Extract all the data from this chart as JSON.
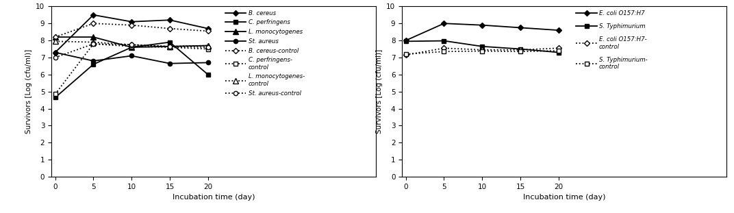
{
  "x": [
    0,
    5,
    10,
    15,
    20
  ],
  "left_series": {
    "B_cereus": [
      7.3,
      9.5,
      9.1,
      9.2,
      8.7
    ],
    "C_perfringens": [
      4.65,
      6.6,
      7.6,
      7.9,
      6.0
    ],
    "L_monocytogenes": [
      8.2,
      8.2,
      7.6,
      7.65,
      7.7
    ],
    "St_aureus": [
      7.3,
      6.8,
      7.1,
      6.65,
      6.7
    ],
    "B_cereus_ctrl": [
      8.2,
      9.0,
      8.9,
      8.7,
      8.55
    ],
    "C_perfringens_ctrl": [
      4.85,
      7.8,
      7.65,
      7.6,
      7.5
    ],
    "L_monocytogenes_ctrl": [
      7.95,
      7.9,
      7.75,
      7.65,
      7.7
    ],
    "St_aureus_ctrl": [
      7.0,
      7.8,
      7.75,
      7.65,
      7.6
    ]
  },
  "right_series": {
    "E_coli": [
      8.0,
      9.0,
      8.9,
      8.75,
      8.6
    ],
    "S_Typhimurium": [
      7.95,
      7.98,
      7.65,
      7.5,
      7.3
    ],
    "E_coli_ctrl": [
      7.15,
      7.55,
      7.45,
      7.45,
      7.55
    ],
    "S_Typhimurium_ctrl": [
      7.2,
      7.35,
      7.38,
      7.35,
      7.4
    ]
  },
  "left_legend_solid": [
    "B. cereus",
    "C. perfringens",
    "L. monocytogenes",
    "St. aureus"
  ],
  "left_legend_dotted": [
    "B. cereus-control",
    "C. perfringens-\ncontrol",
    "L. monocytogenes-\ncontrol",
    "St. aureus-control"
  ],
  "right_legend_solid": [
    "E. coli O157:H7",
    "S. Typhimurium"
  ],
  "right_legend_dotted": [
    "E. coli O157:H7-\ncontrol",
    "S. Typhimurium-\ncontrol"
  ],
  "ylabel": "Survivors [Log (cfu/ml)]",
  "xlabel": "Incubation time (day)",
  "ylim": [
    0,
    10
  ],
  "yticks": [
    0,
    1,
    2,
    3,
    4,
    5,
    6,
    7,
    8,
    9,
    10
  ],
  "xticks": [
    0,
    5,
    10,
    15,
    20
  ],
  "color": "#000000"
}
